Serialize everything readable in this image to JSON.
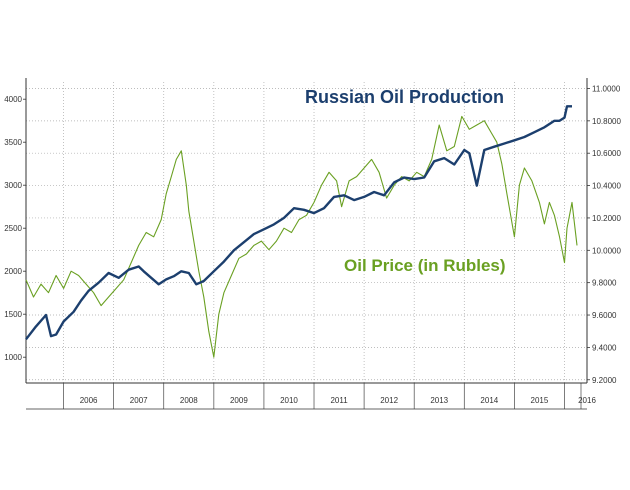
{
  "chart_data": {
    "type": "line",
    "grid": true,
    "x_axis": {
      "range": [
        2005.25,
        2016.45
      ],
      "year_labels": [
        "2006",
        "2007",
        "2008",
        "2009",
        "2010",
        "2011",
        "2012",
        "2013",
        "2014",
        "2015",
        "2016"
      ]
    },
    "left_axis": {
      "range": [
        700,
        4200
      ],
      "ticks": [
        "4000",
        "3500",
        "3000",
        "2500",
        "2000",
        "1500",
        "1000"
      ],
      "tick_values": [
        4000,
        3500,
        3000,
        2500,
        2000,
        1500,
        1000
      ]
    },
    "right_axis": {
      "range": [
        9.18,
        11.04
      ],
      "ticks": [
        "11.0000",
        "10.8000",
        "10.6000",
        "10.4000",
        "10.2000",
        "10.0000",
        "9.8000",
        "9.6000",
        "9.4000",
        "9.2000"
      ],
      "tick_values": [
        11.0,
        10.8,
        10.6,
        10.4,
        10.2,
        10.0,
        9.8,
        9.6,
        9.4,
        9.2
      ]
    },
    "series": [
      {
        "name": "Russian Oil Production",
        "axis": "right",
        "color": "#1c3f6e",
        "x": [
          2005.25,
          2005.45,
          2005.65,
          2005.75,
          2005.85,
          2006.0,
          2006.2,
          2006.35,
          2006.5,
          2006.7,
          2006.9,
          2007.1,
          2007.3,
          2007.5,
          2007.6,
          2007.75,
          2007.9,
          2008.05,
          2008.2,
          2008.35,
          2008.5,
          2008.65,
          2008.8,
          2009.0,
          2009.2,
          2009.4,
          2009.6,
          2009.8,
          2010.0,
          2010.2,
          2010.4,
          2010.6,
          2010.8,
          2011.0,
          2011.2,
          2011.4,
          2011.6,
          2011.8,
          2012.0,
          2012.2,
          2012.4,
          2012.6,
          2012.8,
          2013.0,
          2013.2,
          2013.4,
          2013.6,
          2013.8,
          2014.0,
          2014.1,
          2014.25,
          2014.4,
          2014.6,
          2014.8,
          2015.0,
          2015.2,
          2015.4,
          2015.6,
          2015.8,
          2015.9,
          2016.0,
          2016.05,
          2016.15
        ],
        "y": [
          9.45,
          9.53,
          9.6,
          9.47,
          9.48,
          9.56,
          9.62,
          9.69,
          9.75,
          9.8,
          9.86,
          9.83,
          9.88,
          9.9,
          9.87,
          9.83,
          9.79,
          9.82,
          9.84,
          9.87,
          9.86,
          9.79,
          9.81,
          9.87,
          9.93,
          10.0,
          10.05,
          10.1,
          10.13,
          10.16,
          10.2,
          10.26,
          10.25,
          10.23,
          10.26,
          10.33,
          10.34,
          10.31,
          10.33,
          10.36,
          10.34,
          10.42,
          10.45,
          10.44,
          10.45,
          10.55,
          10.57,
          10.53,
          10.62,
          10.6,
          10.4,
          10.62,
          10.64,
          10.66,
          10.68,
          10.7,
          10.73,
          10.76,
          10.8,
          10.8,
          10.82,
          10.89,
          10.89
        ]
      },
      {
        "name": "Oil Price (in Rubles)",
        "axis": "left",
        "color": "#6aa022",
        "x": [
          2005.25,
          2005.4,
          2005.55,
          2005.7,
          2005.85,
          2006.0,
          2006.15,
          2006.3,
          2006.45,
          2006.6,
          2006.75,
          2006.9,
          2007.05,
          2007.2,
          2007.35,
          2007.5,
          2007.65,
          2007.8,
          2007.95,
          2008.05,
          2008.15,
          2008.25,
          2008.35,
          2008.45,
          2008.5,
          2008.6,
          2008.7,
          2008.8,
          2008.9,
          2009.0,
          2009.1,
          2009.2,
          2009.35,
          2009.5,
          2009.65,
          2009.8,
          2009.95,
          2010.1,
          2010.25,
          2010.4,
          2010.55,
          2010.7,
          2010.85,
          2011.0,
          2011.15,
          2011.3,
          2011.45,
          2011.55,
          2011.7,
          2011.85,
          2012.0,
          2012.15,
          2012.3,
          2012.45,
          2012.6,
          2012.75,
          2012.9,
          2013.05,
          2013.2,
          2013.35,
          2013.5,
          2013.65,
          2013.8,
          2013.95,
          2014.1,
          2014.25,
          2014.4,
          2014.55,
          2014.65,
          2014.75,
          2014.85,
          2015.0,
          2015.1,
          2015.2,
          2015.35,
          2015.5,
          2015.6,
          2015.7,
          2015.8,
          2015.9,
          2016.0,
          2016.05,
          2016.15,
          2016.25
        ],
        "y": [
          1900,
          1700,
          1850,
          1750,
          1950,
          1800,
          2000,
          1950,
          1850,
          1750,
          1600,
          1700,
          1800,
          1900,
          2100,
          2300,
          2450,
          2400,
          2600,
          2900,
          3100,
          3300,
          3400,
          3000,
          2700,
          2350,
          2000,
          1700,
          1300,
          1000,
          1500,
          1750,
          1950,
          2150,
          2200,
          2300,
          2350,
          2250,
          2350,
          2500,
          2450,
          2600,
          2650,
          2800,
          3000,
          3150,
          3050,
          2750,
          3050,
          3100,
          3200,
          3300,
          3150,
          2850,
          3000,
          3100,
          3050,
          3150,
          3100,
          3300,
          3700,
          3400,
          3450,
          3800,
          3650,
          3700,
          3750,
          3600,
          3500,
          3250,
          2900,
          2400,
          3000,
          3200,
          3050,
          2800,
          2550,
          2800,
          2650,
          2400,
          2100,
          2500,
          2800,
          2300
        ]
      }
    ],
    "annotations": [
      "Russian Oil Production",
      "Oil Price (in Rubles)"
    ]
  }
}
